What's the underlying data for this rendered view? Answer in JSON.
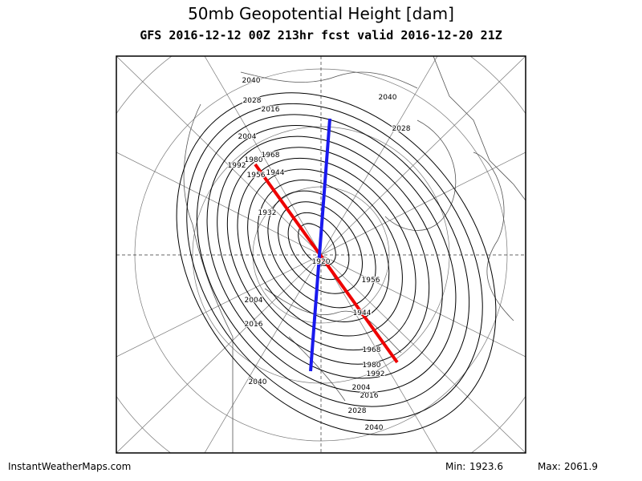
{
  "header": {
    "title": "50mb Geopotential Height [dam]",
    "subtitle": "GFS 2016-12-12 00Z 213hr fcst valid 2016-12-20 21Z"
  },
  "contour_labels": [
    "2040",
    "2028",
    "2016",
    "2004",
    "1980",
    "1992",
    "1968",
    "1956",
    "1944",
    "1932",
    "1920",
    "2040",
    "2028",
    "1956",
    "1944",
    "2004",
    "2016",
    "1968",
    "1980",
    "1992",
    "2004",
    "2016",
    "2028",
    "2040",
    "2040"
  ],
  "footer": {
    "source": "InstantWeatherMaps.com",
    "min_label": "Min:",
    "min": 1923.6,
    "max_label": "Max:",
    "max": 2061.9
  }
}
